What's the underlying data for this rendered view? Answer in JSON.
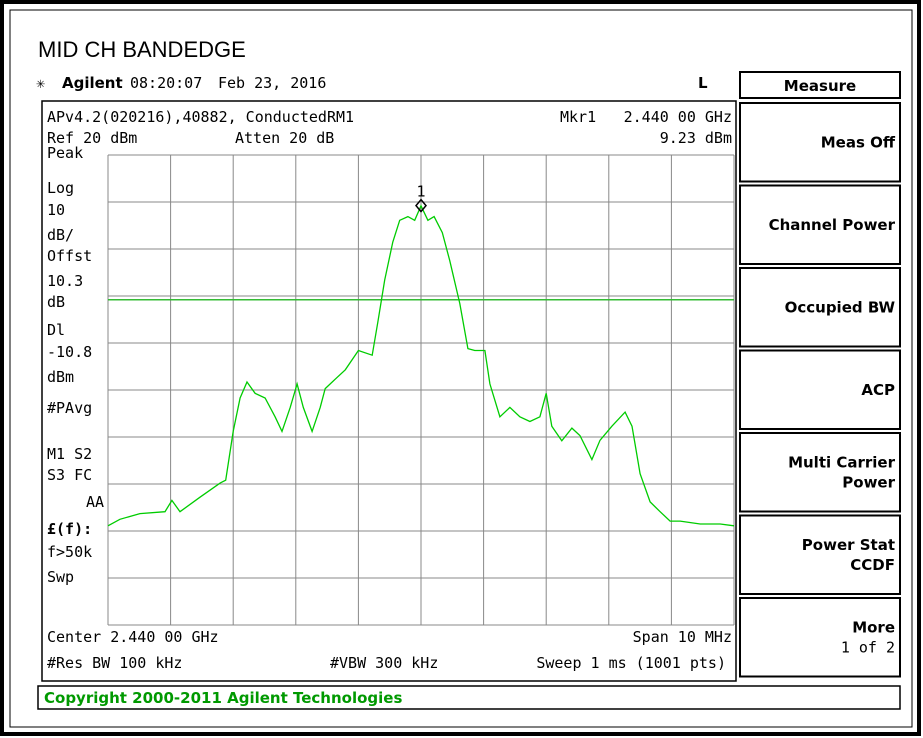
{
  "title": "MID CH BANDEDGE",
  "status": {
    "brand": "Agilent",
    "time": "08:20:07",
    "date": "Feb 23, 2016",
    "indicator": "L"
  },
  "menu": {
    "title": "Measure",
    "keys": [
      [
        "Meas Off"
      ],
      [
        "Channel Power"
      ],
      [
        "Occupied BW"
      ],
      [
        "ACP"
      ],
      [
        "Multi Carrier",
        "Power"
      ],
      [
        "Power Stat",
        "CCDF"
      ],
      [
        "More",
        "1 of 2"
      ]
    ]
  },
  "header": {
    "setup": "APv4.2(020216),40882, ConductedRM1",
    "marker_label": "Mkr1",
    "marker_freq": "2.440 00 GHz",
    "ref": "Ref 20 dBm",
    "atten": "Atten 20 dB",
    "marker_amp": "9.23 dBm"
  },
  "left_panel": [
    "Peak",
    "Log",
    "10",
    "dB/",
    "Offst",
    "10.3",
    "dB",
    "Dl",
    "dBm",
    "#PAvg",
    "M1  S2",
    "S3  FC",
    "AA",
    "£(f):",
    "f>50k",
    "Swp"
  ],
  "footer": {
    "center": "Center 2.440 00 GHz",
    "span": "Span 10 MHz",
    "rbw": "#Res BW 100 kHz",
    "vbw": "#VBW 300 kHz",
    "sweep": "Sweep 1 ms (1001 pts)"
  },
  "copyright": "Copyright 2000-2011 Agilent Technologies",
  "chart_data": {
    "type": "line",
    "x": [
      2435.0,
      2435.19,
      2435.51,
      2435.91,
      2436.02,
      2436.15,
      2436.47,
      2436.79,
      2436.88,
      2437.0,
      2437.11,
      2437.22,
      2437.35,
      2437.51,
      2437.67,
      2437.78,
      2437.91,
      2438.02,
      2438.12,
      2438.26,
      2438.39,
      2438.47,
      2438.63,
      2438.79,
      2439.0,
      2439.22,
      2439.31,
      2439.42,
      2439.55,
      2439.66,
      2439.79,
      2439.9,
      2440.0,
      2440.11,
      2440.21,
      2440.34,
      2440.46,
      2440.62,
      2440.75,
      2440.86,
      2441.02,
      2441.1,
      2441.26,
      2441.42,
      2441.58,
      2441.74,
      2441.9,
      2442.0,
      2442.09,
      2442.25,
      2442.41,
      2442.54,
      2442.73,
      2442.86,
      2443.05,
      2443.26,
      2443.37,
      2443.5,
      2443.66,
      2443.82,
      2443.98,
      2444.14,
      2444.46,
      2444.78,
      2445.0
    ],
    "series": [
      {
        "color": "#00cc00",
        "values": [
          -58.9,
          -57.5,
          -56.3,
          -55.9,
          -53.5,
          -55.9,
          -52.8,
          -49.8,
          -49.2,
          -38.8,
          -31.7,
          -28.3,
          -30.7,
          -31.7,
          -35.7,
          -38.8,
          -33.7,
          -28.7,
          -33.7,
          -38.8,
          -33.7,
          -29.7,
          -27.7,
          -25.7,
          -21.6,
          -22.6,
          -15.6,
          -6.6,
          1.5,
          6.1,
          6.9,
          6.1,
          9.2,
          6.1,
          6.9,
          3.5,
          -2.5,
          -11.6,
          -21.2,
          -21.6,
          -21.6,
          -28.7,
          -35.7,
          -33.7,
          -35.7,
          -36.7,
          -35.7,
          -30.7,
          -37.7,
          -40.8,
          -38.1,
          -39.7,
          -44.8,
          -40.7,
          -37.7,
          -34.7,
          -37.7,
          -47.8,
          -53.8,
          -55.9,
          -57.9,
          -57.9,
          -58.5,
          -58.5,
          -58.9
        ]
      }
    ],
    "xlim": [
      2435,
      2445
    ],
    "ylim": [
      -80,
      20
    ],
    "xticks": [
      2435,
      2436,
      2437,
      2438,
      2439,
      2440,
      2441,
      2442,
      2443,
      2444,
      2445
    ],
    "yticks": [
      -80,
      -70,
      -60,
      -50,
      -40,
      -30,
      -20,
      -10,
      0,
      10,
      20
    ],
    "grid": true,
    "display_line": -10.8,
    "display_line_color": "#33bb33",
    "marker": {
      "label": "1",
      "x": 2440,
      "y": 9.23
    }
  }
}
